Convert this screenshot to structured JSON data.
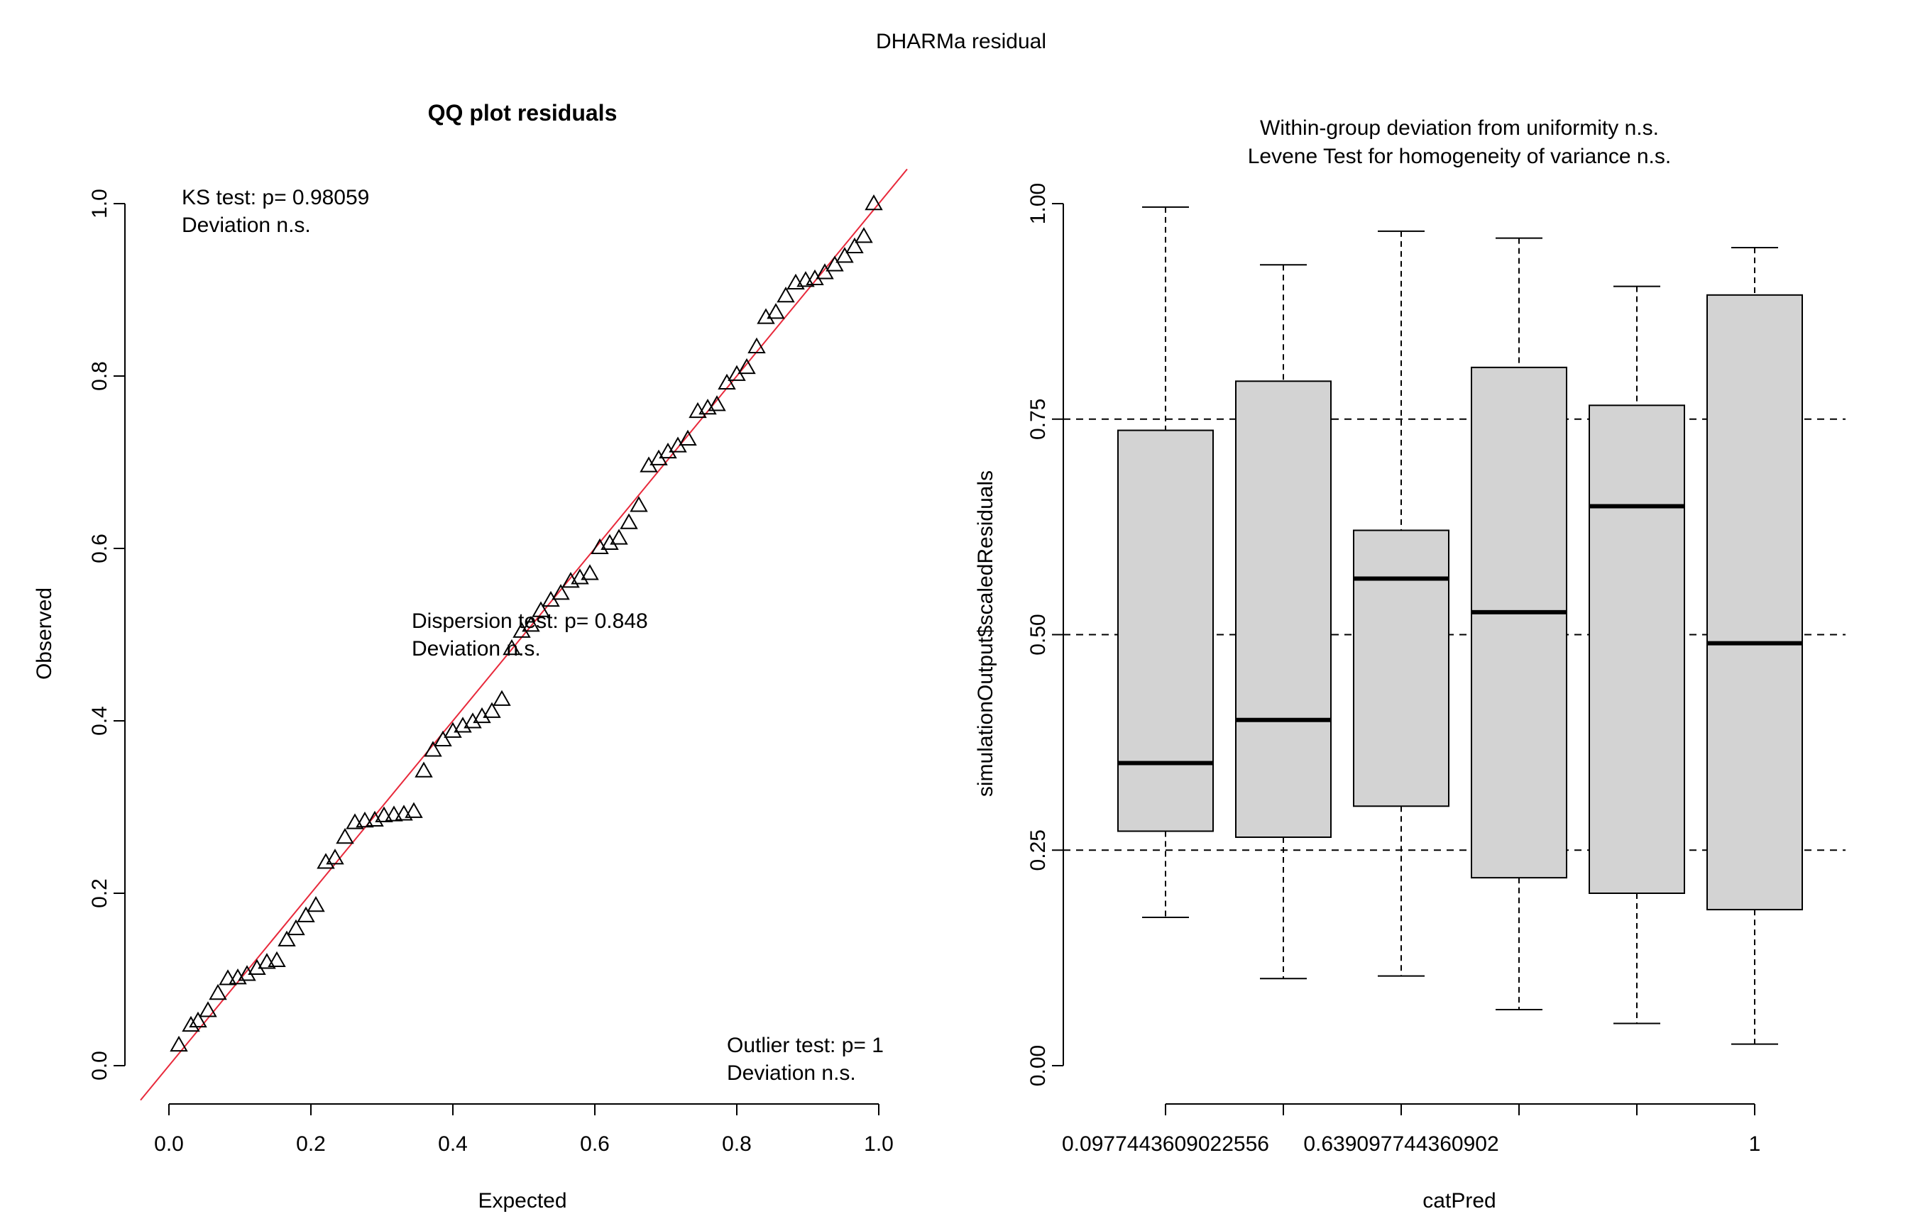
{
  "figure": {
    "main_title": "DHARMa residual"
  },
  "chart_data": [
    {
      "type": "scatter",
      "title": "QQ plot residuals",
      "xlabel": "Expected",
      "ylabel": "Observed",
      "xlim": [
        0,
        1
      ],
      "ylim": [
        0,
        1
      ],
      "xticks": [
        "0.0",
        "0.2",
        "0.4",
        "0.6",
        "0.8",
        "1.0"
      ],
      "yticks": [
        "0.0",
        "0.2",
        "0.4",
        "0.6",
        "0.8",
        "1.0"
      ],
      "reference_line": {
        "slope": 1,
        "intercept": 0,
        "color": "#e8293b"
      },
      "marker": "triangle",
      "annotations": {
        "ks_line1": "KS test: p= 0.98059",
        "ks_line2": "Deviation  n.s.",
        "disp_line1": "Dispersion test: p= 0.848",
        "disp_line2": "Deviation  n.s.",
        "out_line1": "Outlier test: p= 1",
        "out_line2": "Deviation  n.s."
      },
      "x": [
        0.014,
        0.031,
        0.041,
        0.055,
        0.069,
        0.083,
        0.097,
        0.11,
        0.124,
        0.138,
        0.152,
        0.166,
        0.179,
        0.193,
        0.207,
        0.221,
        0.234,
        0.248,
        0.262,
        0.276,
        0.29,
        0.303,
        0.317,
        0.331,
        0.345,
        0.359,
        0.372,
        0.386,
        0.4,
        0.414,
        0.428,
        0.441,
        0.455,
        0.469,
        0.483,
        0.497,
        0.51,
        0.524,
        0.538,
        0.552,
        0.566,
        0.579,
        0.593,
        0.607,
        0.621,
        0.634,
        0.648,
        0.662,
        0.676,
        0.69,
        0.703,
        0.717,
        0.731,
        0.745,
        0.759,
        0.772,
        0.786,
        0.8,
        0.814,
        0.828,
        0.841,
        0.855,
        0.869,
        0.883,
        0.897,
        0.91,
        0.924,
        0.938,
        0.952,
        0.966,
        0.979,
        0.993
      ],
      "y": [
        0.024,
        0.047,
        0.052,
        0.064,
        0.084,
        0.101,
        0.102,
        0.106,
        0.113,
        0.12,
        0.122,
        0.146,
        0.159,
        0.174,
        0.186,
        0.236,
        0.241,
        0.265,
        0.282,
        0.284,
        0.285,
        0.29,
        0.291,
        0.292,
        0.295,
        0.342,
        0.366,
        0.378,
        0.388,
        0.394,
        0.399,
        0.405,
        0.411,
        0.425,
        0.484,
        0.504,
        0.511,
        0.528,
        0.54,
        0.548,
        0.562,
        0.566,
        0.571,
        0.601,
        0.606,
        0.612,
        0.63,
        0.65,
        0.696,
        0.704,
        0.712,
        0.719,
        0.727,
        0.759,
        0.763,
        0.767,
        0.792,
        0.802,
        0.81,
        0.834,
        0.868,
        0.874,
        0.893,
        0.908,
        0.911,
        0.913,
        0.92,
        0.929,
        0.939,
        0.95,
        0.962,
        1.0
      ]
    },
    {
      "type": "box",
      "title_line1": "Within-group deviation from uniformity n.s.",
      "title_line2": "Levene Test for homogeneity of variance n.s.",
      "xlabel": "catPred",
      "ylabel": "simulationOutput$scaledResiduals",
      "ylim": [
        0,
        1
      ],
      "yticks": [
        "0.00",
        "0.25",
        "0.50",
        "0.75",
        "1.00"
      ],
      "reference_lines": [
        0.25,
        0.5,
        0.75
      ],
      "fill": "#d3d3d3",
      "x_tick_labels": [
        "0.0977443609022556",
        "0.639097744360902",
        "1"
      ],
      "labeled_box_indices": [
        0,
        2,
        5
      ],
      "boxes": [
        {
          "whisker_low": 0.172,
          "q1": 0.272,
          "median": 0.351,
          "q3": 0.737,
          "whisker_high": 0.996
        },
        {
          "whisker_low": 0.101,
          "q1": 0.265,
          "median": 0.401,
          "q3": 0.794,
          "whisker_high": 0.929
        },
        {
          "whisker_low": 0.104,
          "q1": 0.301,
          "median": 0.565,
          "q3": 0.621,
          "whisker_high": 0.968
        },
        {
          "whisker_low": 0.065,
          "q1": 0.218,
          "median": 0.526,
          "q3": 0.81,
          "whisker_high": 0.96
        },
        {
          "whisker_low": 0.049,
          "q1": 0.2,
          "median": 0.649,
          "q3": 0.766,
          "whisker_high": 0.904
        },
        {
          "whisker_low": 0.025,
          "q1": 0.181,
          "median": 0.49,
          "q3": 0.894,
          "whisker_high": 0.949
        }
      ]
    }
  ]
}
